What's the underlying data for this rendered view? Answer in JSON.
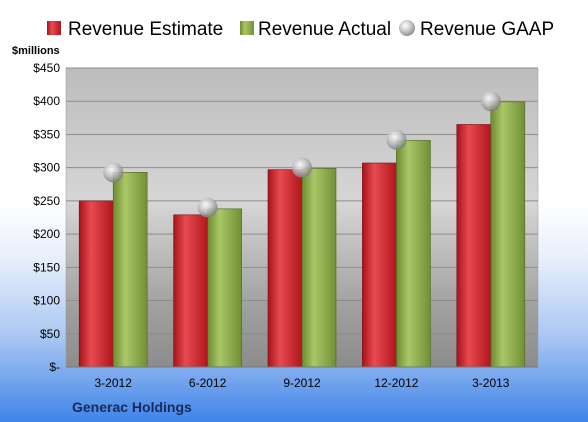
{
  "chart_data": {
    "type": "bar",
    "categories": [
      "3-2012",
      "6-2012",
      "9-2012",
      "12-2012",
      "3-2013"
    ],
    "series": [
      {
        "name": "Revenue Estimate",
        "kind": "bar",
        "color": "#cc1f26",
        "values": [
          250,
          229,
          297,
          307,
          365
        ]
      },
      {
        "name": "Revenue Actual",
        "kind": "bar",
        "color": "#8fb04a",
        "values": [
          293,
          238,
          299,
          341,
          399
        ]
      },
      {
        "name": "Revenue GAAP",
        "kind": "marker",
        "color": "#b8b8b8",
        "values": [
          293,
          240,
          300,
          342,
          400
        ]
      }
    ],
    "ylabel": "$millions",
    "ylim": [
      0,
      450
    ],
    "yticks": [
      {
        "value": 0,
        "label": "$-"
      },
      {
        "value": 50,
        "label": "$50"
      },
      {
        "value": 100,
        "label": "$100"
      },
      {
        "value": 150,
        "label": "$150"
      },
      {
        "value": 200,
        "label": "$200"
      },
      {
        "value": 250,
        "label": "$250"
      },
      {
        "value": 300,
        "label": "$300"
      },
      {
        "value": 350,
        "label": "$350"
      },
      {
        "value": 400,
        "label": "$400"
      },
      {
        "value": 450,
        "label": "$450"
      }
    ],
    "grid": true,
    "legend": "top"
  },
  "footer": {
    "company": "Generac Holdings"
  }
}
